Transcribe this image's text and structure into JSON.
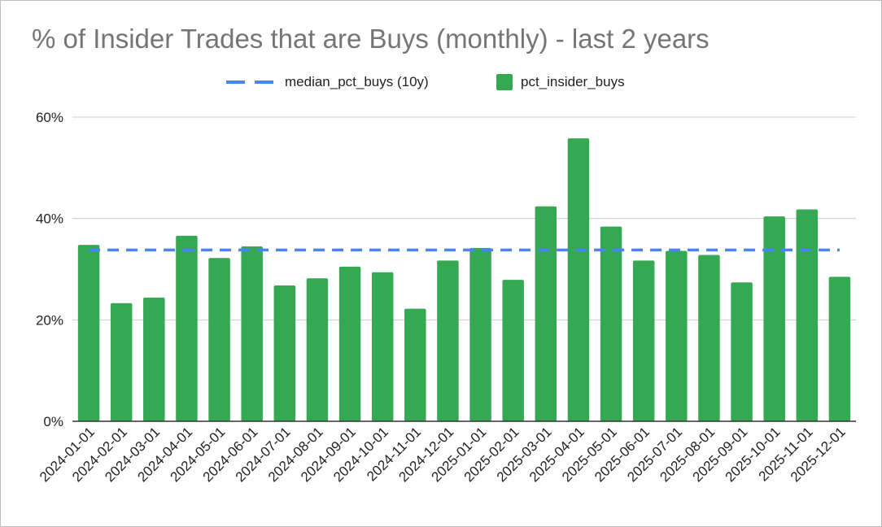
{
  "colors": {
    "bar": "#34a853",
    "median_line": "#4a86e8",
    "grid": "#cccccc",
    "axis": "#333333",
    "title": "#757575"
  },
  "chart_data": {
    "type": "bar",
    "title": "% of Insider Trades that are Buys (monthly) - last 2 years",
    "xlabel": "",
    "ylabel": "",
    "ylim": [
      0,
      60
    ],
    "yticks": [
      0,
      20,
      40,
      60
    ],
    "ytick_labels": [
      "0%",
      "20%",
      "40%",
      "60%"
    ],
    "grid": true,
    "legend_position": "top",
    "categories": [
      "2024-01-01",
      "2024-02-01",
      "2024-03-01",
      "2024-04-01",
      "2024-05-01",
      "2024-06-01",
      "2024-07-01",
      "2024-08-01",
      "2024-09-01",
      "2024-10-01",
      "2024-11-01",
      "2024-12-01",
      "2025-01-01",
      "2025-02-01",
      "2025-03-01",
      "2025-04-01",
      "2025-05-01",
      "2025-06-01",
      "2025-07-01",
      "2025-08-01",
      "2025-09-01",
      "2025-10-01",
      "2025-11-01",
      "2025-12-01"
    ],
    "series": [
      {
        "name": "pct_insider_buys",
        "type": "bar",
        "values": [
          34.8,
          23.3,
          24.4,
          36.6,
          32.2,
          34.5,
          26.8,
          28.2,
          30.5,
          29.4,
          22.2,
          31.7,
          34.2,
          27.9,
          42.4,
          55.8,
          38.4,
          31.7,
          33.6,
          32.8,
          27.4,
          40.4,
          41.8,
          28.5
        ]
      },
      {
        "name": "median_pct_buys (10y)",
        "type": "line",
        "style": "dashed",
        "values": [
          33.8,
          33.8,
          33.8,
          33.8,
          33.8,
          33.8,
          33.8,
          33.8,
          33.8,
          33.8,
          33.8,
          33.8,
          33.8,
          33.8,
          33.8,
          33.8,
          33.8,
          33.8,
          33.8,
          33.8,
          33.8,
          33.8,
          33.8,
          33.8
        ]
      }
    ]
  }
}
